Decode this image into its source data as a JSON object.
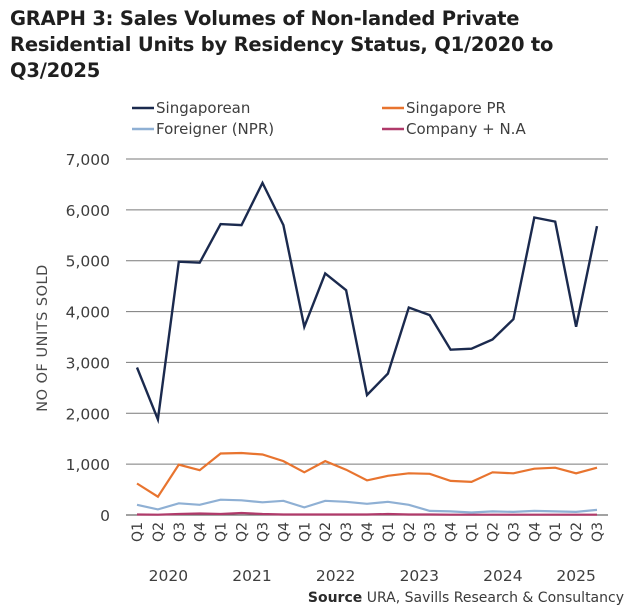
{
  "chart_data": {
    "type": "line",
    "title": "GRAPH 3: Sales Volumes of Non-landed Private Residential Units by Residency Status, Q1/2020 to Q3/2025",
    "xlabel": "",
    "ylabel": "NO OF UNITS SOLD",
    "ylim": [
      0,
      7000
    ],
    "yticks": [
      0,
      1000,
      2000,
      3000,
      4000,
      5000,
      6000,
      7000
    ],
    "ytick_labels": [
      "0",
      "1,000",
      "2,000",
      "3,000",
      "4,000",
      "5,000",
      "6,000",
      "7,000"
    ],
    "grid": "horizontal",
    "legend_position": "top",
    "categories": [
      "Q1",
      "Q2",
      "Q3",
      "Q4",
      "Q1",
      "Q2",
      "Q3",
      "Q4",
      "Q1",
      "Q2",
      "Q3",
      "Q4",
      "Q1",
      "Q2",
      "Q3",
      "Q4",
      "Q1",
      "Q2",
      "Q3",
      "Q4",
      "Q1",
      "Q2",
      "Q3"
    ],
    "year_labels": [
      {
        "label": "2020",
        "start": 0,
        "end": 3
      },
      {
        "label": "2021",
        "start": 4,
        "end": 7
      },
      {
        "label": "2022",
        "start": 8,
        "end": 11
      },
      {
        "label": "2023",
        "start": 12,
        "end": 15
      },
      {
        "label": "2024",
        "start": 16,
        "end": 19
      },
      {
        "label": "2025",
        "start": 20,
        "end": 22
      }
    ],
    "series": [
      {
        "name": "Singaporean",
        "color": "#1b2a4e",
        "values": [
          2900,
          1880,
          4980,
          4960,
          5720,
          5700,
          6530,
          5700,
          3700,
          4750,
          4420,
          2360,
          2780,
          4080,
          3930,
          3250,
          3270,
          3450,
          3850,
          5850,
          5770,
          3700,
          5680
        ]
      },
      {
        "name": "Singapore PR",
        "color": "#e8742f",
        "values": [
          620,
          360,
          990,
          880,
          1210,
          1220,
          1190,
          1060,
          840,
          1060,
          890,
          680,
          770,
          820,
          810,
          670,
          650,
          840,
          820,
          910,
          930,
          820,
          930
        ]
      },
      {
        "name": "Foreigner (NPR)",
        "color": "#8fb0d4",
        "values": [
          200,
          110,
          230,
          200,
          300,
          290,
          250,
          280,
          150,
          280,
          260,
          220,
          260,
          200,
          80,
          70,
          50,
          70,
          60,
          80,
          70,
          60,
          100
        ]
      },
      {
        "name": "Company + N.A",
        "color": "#b03a6a",
        "values": [
          10,
          5,
          20,
          30,
          20,
          40,
          20,
          10,
          10,
          10,
          10,
          10,
          20,
          10,
          10,
          5,
          5,
          5,
          5,
          5,
          5,
          5,
          5
        ]
      }
    ]
  },
  "source": {
    "label": "Source",
    "text": "URA, Savills Research & Consultancy"
  }
}
